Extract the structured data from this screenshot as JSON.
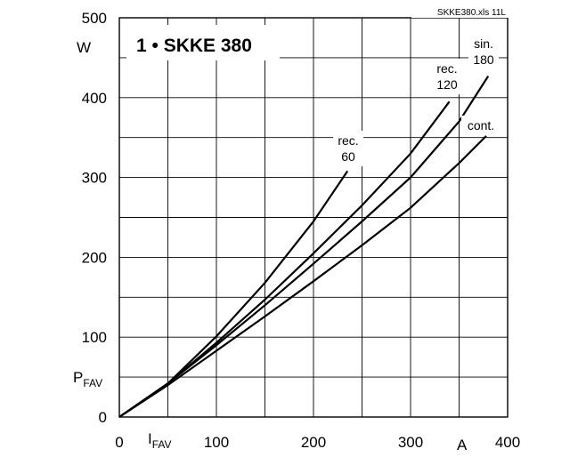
{
  "chart_data": {
    "type": "line",
    "title": "1 • SKKE 380",
    "file_tag": "SKKE380.xls 11L",
    "x_axis": {
      "symbol": "I",
      "subscript": "FAV",
      "unit": "A",
      "range": [
        0,
        400
      ],
      "ticks": [
        0,
        100,
        200,
        300,
        400
      ],
      "tick_labels": [
        "0",
        "100",
        "200",
        "300",
        "400"
      ]
    },
    "y_axis": {
      "symbol": "P",
      "subscript": "FAV",
      "unit": "W",
      "range": [
        0,
        500
      ],
      "ticks": [
        0,
        100,
        200,
        300,
        400,
        500
      ],
      "tick_labels": [
        "0",
        "100",
        "200",
        "300",
        "400",
        "500"
      ]
    },
    "grid": true,
    "series": [
      {
        "label_lines": [
          "rec.",
          "60"
        ],
        "x": [
          0,
          50,
          100,
          150,
          200,
          235
        ],
        "y": [
          0,
          42,
          101,
          168,
          245,
          308
        ]
      },
      {
        "label_lines": [
          "rec.",
          "120"
        ],
        "x": [
          0,
          50,
          100,
          150,
          200,
          250,
          300,
          340
        ],
        "y": [
          0,
          42,
          93,
          147,
          205,
          265,
          330,
          395
        ]
      },
      {
        "label_lines": [
          "sin.",
          "180"
        ],
        "x": [
          0,
          50,
          100,
          150,
          200,
          250,
          300,
          350,
          380
        ],
        "y": [
          0,
          42,
          90,
          140,
          192,
          245,
          300,
          370,
          427
        ]
      },
      {
        "label_lines": [
          "cont."
        ],
        "x": [
          0,
          50,
          100,
          150,
          200,
          250,
          300,
          350,
          378
        ],
        "y": [
          0,
          40,
          83,
          126,
          170,
          215,
          262,
          318,
          352
        ]
      }
    ]
  }
}
